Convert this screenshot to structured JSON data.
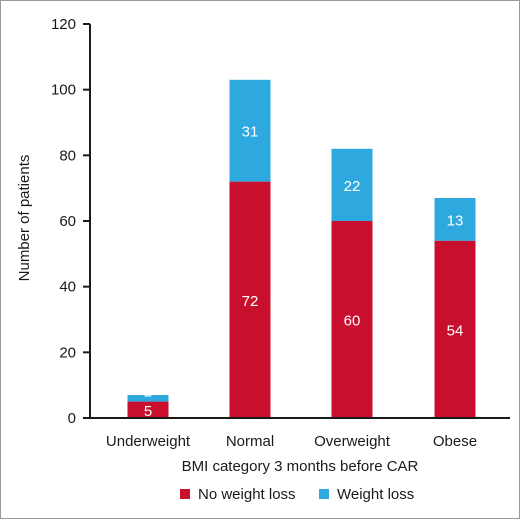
{
  "chart_data": {
    "type": "bar",
    "stacked": true,
    "title": "",
    "xlabel": "BMI category 3 months before CAR",
    "ylabel": "Number of patients",
    "categories": [
      "Underweight",
      "Normal",
      "Overweight",
      "Obese"
    ],
    "ylim": [
      0,
      120
    ],
    "yticks": [
      "0",
      "20",
      "40",
      "60",
      "80",
      "100",
      "120"
    ],
    "grid": false,
    "legend_position": "bottom",
    "series": [
      {
        "name": "No weight loss",
        "color": "#c8102e",
        "values": [
          5,
          72,
          60,
          54
        ]
      },
      {
        "name": "Weight loss",
        "color": "#2ea9df",
        "values": [
          2,
          31,
          22,
          13
        ]
      }
    ]
  }
}
